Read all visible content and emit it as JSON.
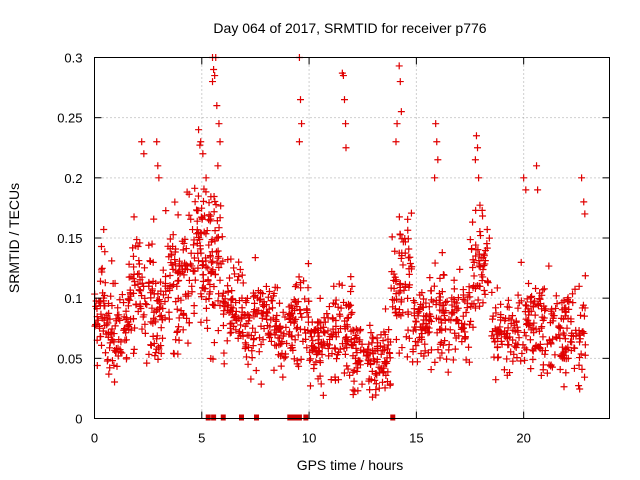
{
  "chart_data": {
    "type": "scatter",
    "title": "Day 064 of 2017, SRMTID for receiver p776",
    "xlabel": "GPS time / hours",
    "ylabel": "SRMTID / TECUs",
    "xlim": [
      0,
      24
    ],
    "ylim": [
      0,
      0.3
    ],
    "x_ticks": [
      0,
      5,
      10,
      15,
      20
    ],
    "x_tick_labels": [
      "0",
      "5",
      "10",
      "15",
      "20"
    ],
    "y_ticks": [
      0,
      0.05,
      0.1,
      0.15,
      0.2,
      0.25,
      0.3
    ],
    "y_tick_labels": [
      "0",
      "0.05",
      "0.1",
      "0.15",
      "0.2",
      "0.25",
      "0.3"
    ],
    "grid": true,
    "marker": "+",
    "color": "#e00000",
    "series": [
      {
        "name": "SRMTID",
        "seed": 64,
        "segments": [
          {
            "x": [
              0.0,
              0.5
            ],
            "mean": 0.095,
            "spread": 0.035,
            "n": 40
          },
          {
            "x": [
              0.5,
              1.5
            ],
            "mean": 0.075,
            "spread": 0.03,
            "n": 70
          },
          {
            "x": [
              1.5,
              2.8
            ],
            "mean": 0.105,
            "spread": 0.035,
            "n": 90
          },
          {
            "x": [
              2.8,
              3.3
            ],
            "mean": 0.085,
            "spread": 0.03,
            "n": 35
          },
          {
            "x": [
              3.3,
              4.5
            ],
            "mean": 0.12,
            "spread": 0.04,
            "n": 90
          },
          {
            "x": [
              4.5,
              5.3
            ],
            "mean": 0.14,
            "spread": 0.045,
            "n": 70
          },
          {
            "x": [
              5.3,
              6.0
            ],
            "mean": 0.13,
            "spread": 0.045,
            "n": 60
          },
          {
            "x": [
              6.0,
              7.0
            ],
            "mean": 0.095,
            "spread": 0.03,
            "n": 70
          },
          {
            "x": [
              7.0,
              8.5
            ],
            "mean": 0.08,
            "spread": 0.03,
            "n": 100
          },
          {
            "x": [
              8.5,
              9.3
            ],
            "mean": 0.07,
            "spread": 0.025,
            "n": 50
          },
          {
            "x": [
              9.3,
              10.0
            ],
            "mean": 0.085,
            "spread": 0.03,
            "n": 45
          },
          {
            "x": [
              10.0,
              11.0
            ],
            "mean": 0.065,
            "spread": 0.025,
            "n": 70
          },
          {
            "x": [
              11.0,
              12.0
            ],
            "mean": 0.075,
            "spread": 0.03,
            "n": 70
          },
          {
            "x": [
              12.0,
              13.8
            ],
            "mean": 0.052,
            "spread": 0.022,
            "n": 120
          },
          {
            "x": [
              13.8,
              14.8
            ],
            "mean": 0.11,
            "spread": 0.04,
            "n": 70
          },
          {
            "x": [
              14.8,
              15.5
            ],
            "mean": 0.075,
            "spread": 0.025,
            "n": 50
          },
          {
            "x": [
              15.5,
              17.5
            ],
            "mean": 0.085,
            "spread": 0.03,
            "n": 120
          },
          {
            "x": [
              17.5,
              18.5
            ],
            "mean": 0.12,
            "spread": 0.035,
            "n": 60
          },
          {
            "x": [
              18.5,
              19.8
            ],
            "mean": 0.07,
            "spread": 0.025,
            "n": 80
          },
          {
            "x": [
              19.8,
              21.5
            ],
            "mean": 0.08,
            "spread": 0.03,
            "n": 100
          },
          {
            "x": [
              21.5,
              22.9
            ],
            "mean": 0.07,
            "spread": 0.028,
            "n": 90
          }
        ],
        "outliers": [
          [
            2.2,
            0.23
          ],
          [
            2.3,
            0.22
          ],
          [
            2.9,
            0.23
          ],
          [
            2.95,
            0.21
          ],
          [
            3.0,
            0.2
          ],
          [
            4.85,
            0.24
          ],
          [
            4.95,
            0.23
          ],
          [
            5.05,
            0.22
          ],
          [
            5.2,
            0.2
          ],
          [
            5.5,
            0.3
          ],
          [
            5.55,
            0.29
          ],
          [
            5.6,
            0.285
          ],
          [
            5.5,
            0.28
          ],
          [
            5.65,
            0.3
          ],
          [
            5.7,
            0.26
          ],
          [
            5.8,
            0.245
          ],
          [
            5.85,
            0.23
          ],
          [
            5.75,
            0.21
          ],
          [
            9.55,
            0.3
          ],
          [
            9.6,
            0.265
          ],
          [
            9.65,
            0.245
          ],
          [
            9.55,
            0.23
          ],
          [
            11.55,
            0.287
          ],
          [
            11.6,
            0.285
          ],
          [
            11.65,
            0.265
          ],
          [
            11.7,
            0.245
          ],
          [
            11.72,
            0.225
          ],
          [
            14.2,
            0.293
          ],
          [
            14.25,
            0.28
          ],
          [
            14.3,
            0.255
          ],
          [
            14.1,
            0.245
          ],
          [
            14.05,
            0.23
          ],
          [
            15.9,
            0.245
          ],
          [
            15.95,
            0.23
          ],
          [
            16.0,
            0.215
          ],
          [
            15.85,
            0.2
          ],
          [
            17.8,
            0.235
          ],
          [
            17.85,
            0.225
          ],
          [
            17.9,
            0.2
          ],
          [
            17.75,
            0.215
          ],
          [
            20.0,
            0.2
          ],
          [
            20.1,
            0.19
          ],
          [
            20.6,
            0.21
          ],
          [
            20.65,
            0.19
          ],
          [
            22.7,
            0.2
          ],
          [
            22.8,
            0.18
          ],
          [
            22.85,
            0.17
          ]
        ]
      }
    ],
    "zero_points_x": [
      5.3,
      5.55,
      6.0,
      6.85,
      7.55,
      9.1,
      9.3,
      9.45,
      9.55,
      9.85,
      13.9
    ]
  }
}
